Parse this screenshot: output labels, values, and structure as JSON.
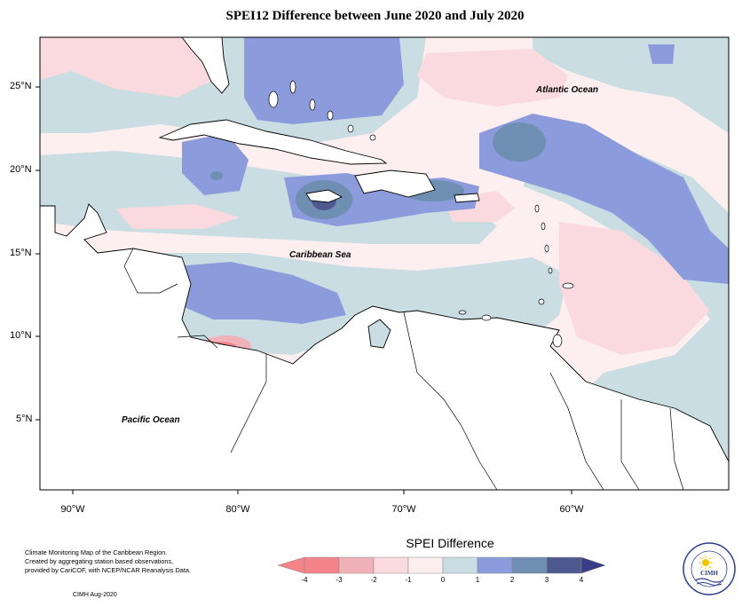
{
  "title": "SPEI12 Difference between June 2020 and July 2020",
  "latitude_labels": [
    "25°N",
    "20°N",
    "15°N",
    "10°N",
    "5°N"
  ],
  "longitude_labels": [
    "90°W",
    "80°W",
    "70°W",
    "60°W"
  ],
  "region_labels": {
    "atlantic": "Atlantic Ocean",
    "caribbean": "Caribbean Sea",
    "pacific": "Pacific Ocean"
  },
  "credit": {
    "line1": "Climate Monitoring Map of the Caribbean Region.",
    "line2": "Created by aggregating station based observations,",
    "line3": "provided by CariCOF, with NCEP/NCAR Reanalysis Data.",
    "date": "CIMH Aug-2020"
  },
  "legend": {
    "title": "SPEI Difference",
    "labels": [
      "-4",
      "-3",
      "-2",
      "-1",
      "0",
      "1",
      "2",
      "3",
      "4"
    ],
    "colors": [
      "#f4838a",
      "#f0b2b8",
      "#fadadf",
      "#fdeff0",
      "#c9dde3",
      "#8c9bdb",
      "#6e8fb1",
      "#4e5a8f"
    ],
    "arrow_low": "#f4838a",
    "arrow_high": "#3a3d86"
  },
  "logo": {
    "name": "CIMH"
  }
}
